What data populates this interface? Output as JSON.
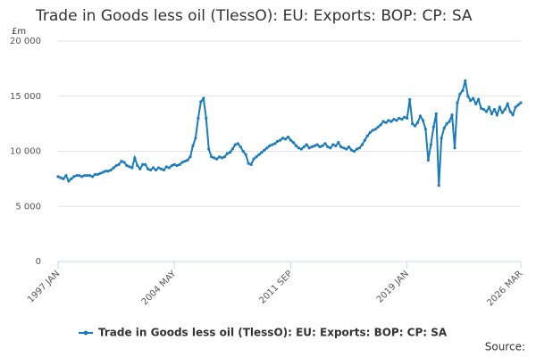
{
  "chart_data": {
    "type": "line",
    "title": "Trade in Goods less oil (TlessO): EU: Exports: BOP: CP: SA",
    "ylabel": "£m",
    "source": "Source:",
    "categories": [
      "1997 JAN",
      null,
      null,
      null,
      null,
      null,
      null,
      null,
      null,
      null,
      null,
      null,
      null,
      null,
      null,
      null,
      null,
      null,
      null,
      null,
      null,
      null,
      null,
      null,
      null,
      null,
      null,
      null,
      null,
      null,
      null,
      null,
      null,
      null,
      null,
      null,
      null,
      null,
      null,
      null,
      null,
      null,
      null,
      null,
      "2004 MAY",
      null,
      null,
      null,
      null,
      null,
      null,
      null,
      null,
      null,
      null,
      null,
      null,
      null,
      null,
      null,
      null,
      null,
      null,
      null,
      null,
      null,
      null,
      null,
      null,
      null,
      null,
      null,
      null,
      null,
      null,
      null,
      null,
      null,
      null,
      null,
      null,
      null,
      null,
      null,
      null,
      null,
      null,
      null,
      "2011 SEP",
      null,
      null,
      null,
      null,
      null,
      null,
      null,
      null,
      null,
      null,
      null,
      null,
      null,
      null,
      null,
      null,
      null,
      null,
      null,
      null,
      null,
      null,
      null,
      null,
      null,
      null,
      null,
      null,
      null,
      null,
      null,
      null,
      null,
      null,
      null,
      null,
      null,
      null,
      null,
      null,
      null,
      null,
      null,
      "2019 JAN",
      null,
      null,
      null,
      null,
      null,
      null,
      null,
      null,
      null,
      null,
      null,
      null,
      null,
      null,
      null,
      null,
      null,
      null,
      null,
      null,
      null,
      null,
      null,
      null,
      null,
      null,
      null,
      null,
      null,
      null,
      null,
      null,
      null,
      null,
      null,
      null,
      null,
      null,
      null,
      null,
      null,
      null,
      "2026 MAR"
    ],
    "series": [
      {
        "name": "Trade in Goods less oil (TlessO): EU: Exports: BOP: CP: SA",
        "color": "#1a7cbc",
        "values": [
          7700,
          7600,
          7500,
          7800,
          7300,
          7500,
          7700,
          7800,
          7800,
          7700,
          7800,
          7800,
          7800,
          7700,
          7900,
          7900,
          8000,
          8100,
          8200,
          8200,
          8300,
          8500,
          8700,
          8800,
          9100,
          9000,
          8700,
          8600,
          8500,
          9400,
          8700,
          8400,
          8800,
          8800,
          8400,
          8300,
          8500,
          8300,
          8500,
          8400,
          8300,
          8600,
          8500,
          8700,
          8800,
          8700,
          8800,
          9000,
          9100,
          9200,
          9500,
          10500,
          11200,
          13000,
          14500,
          14800,
          13000,
          10200,
          9500,
          9400,
          9300,
          9500,
          9400,
          9500,
          9800,
          9900,
          10200,
          10600,
          10700,
          10400,
          10000,
          9700,
          8900,
          8800,
          9300,
          9500,
          9700,
          9900,
          10100,
          10300,
          10500,
          10600,
          10700,
          10900,
          11000,
          11200,
          11100,
          11300,
          11000,
          10800,
          10500,
          10300,
          10200,
          10400,
          10600,
          10300,
          10400,
          10500,
          10600,
          10400,
          10500,
          10700,
          10400,
          10300,
          10600,
          10500,
          10800,
          10400,
          10300,
          10200,
          10400,
          10100,
          10000,
          10200,
          10300,
          10600,
          11000,
          11400,
          11700,
          11900,
          12000,
          12200,
          12400,
          12700,
          12600,
          12800,
          12700,
          12900,
          12800,
          13000,
          12900,
          13100,
          13000,
          14700,
          12500,
          12300,
          12600,
          13200,
          12800,
          12000,
          9200,
          10600,
          12200,
          13400,
          6900,
          11200,
          12100,
          12500,
          12700,
          13300,
          10300,
          14400,
          15200,
          15500,
          16400,
          15000,
          14600,
          14800,
          14300,
          14700,
          13900,
          13800,
          13600,
          14000,
          13400,
          13800,
          13300,
          14000,
          13500,
          13800,
          14300,
          13600,
          13300,
          14000,
          14200,
          14400
        ]
      }
    ],
    "ylim": [
      0,
      20000
    ],
    "yticks": [
      0,
      {
        "value": 5000,
        "label": "5 000"
      },
      {
        "value": 10000,
        "label": "10 000"
      },
      {
        "value": 15000,
        "label": "15 000"
      },
      {
        "value": 20000,
        "label": "20 000"
      }
    ],
    "grid": true
  }
}
